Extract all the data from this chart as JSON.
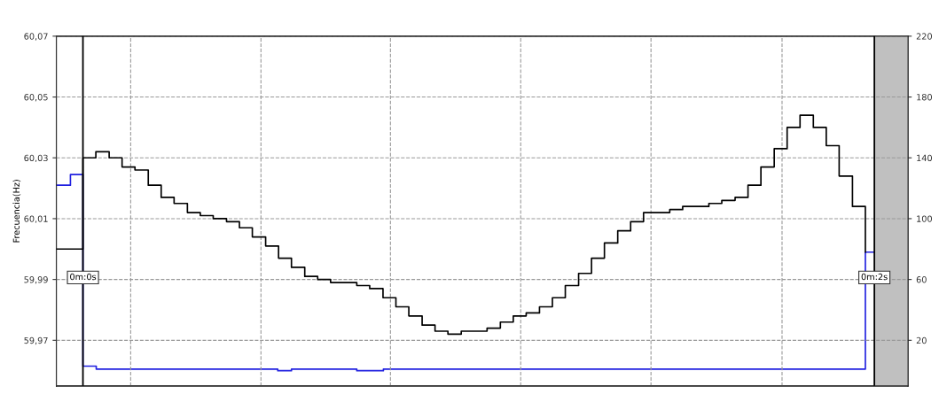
{
  "chart_data": {
    "type": "step",
    "ylabel": "Frecuencia(Hz)",
    "xlim": [
      -0.068,
      2.109
    ],
    "xticks": [
      {
        "value": 0.122,
        "label": null
      },
      {
        "value": 0.455,
        "label": null
      },
      {
        "value": 0.786,
        "label": null
      },
      {
        "value": 1.119,
        "label": null
      },
      {
        "value": 1.452,
        "label": null
      },
      {
        "value": 1.787,
        "label": null
      }
    ],
    "ylim": [
      59.955,
      60.07
    ],
    "yticks": [
      {
        "value": 59.97,
        "label": "59,97"
      },
      {
        "value": 59.99,
        "label": "59,99"
      },
      {
        "value": 60.01,
        "label": "60,01"
      },
      {
        "value": 60.03,
        "label": "60,03"
      },
      {
        "value": 60.05,
        "label": "60,05"
      },
      {
        "value": 60.07,
        "label": "60,07"
      }
    ],
    "y2lim": [
      -10,
      220
    ],
    "y2ticks": [
      20,
      60,
      100,
      140,
      180,
      220
    ],
    "grid": true,
    "tick_labels": "y",
    "series": [
      {
        "color": "#000000",
        "x": [
          -0.068,
          0,
          0.033,
          0.067,
          0.1,
          0.133,
          0.167,
          0.2,
          0.233,
          0.267,
          0.3,
          0.333,
          0.367,
          0.4,
          0.433,
          0.467,
          0.5,
          0.533,
          0.567,
          0.6,
          0.633,
          0.667,
          0.7,
          0.733,
          0.767,
          0.8,
          0.833,
          0.867,
          0.9,
          0.933,
          0.967,
          1.0,
          1.033,
          1.067,
          1.1,
          1.133,
          1.167,
          1.2,
          1.233,
          1.267,
          1.3,
          1.333,
          1.367,
          1.4,
          1.433,
          1.467,
          1.5,
          1.533,
          1.567,
          1.6,
          1.633,
          1.667,
          1.7,
          1.733,
          1.767,
          1.8,
          1.833,
          1.867,
          1.9,
          1.933,
          1.967,
          2.0
        ],
        "values": [
          60.0,
          60.03,
          60.032,
          60.03,
          60.027,
          60.026,
          60.021,
          60.017,
          60.015,
          60.012,
          60.011,
          60.01,
          60.009,
          60.007,
          60.004,
          60.001,
          59.997,
          59.994,
          59.991,
          59.99,
          59.989,
          59.989,
          59.988,
          59.987,
          59.984,
          59.981,
          59.978,
          59.975,
          59.973,
          59.972,
          59.973,
          59.973,
          59.974,
          59.976,
          59.978,
          59.979,
          59.981,
          59.984,
          59.988,
          59.992,
          59.997,
          60.002,
          60.006,
          60.009,
          60.012,
          60.012,
          60.013,
          60.014,
          60.014,
          60.015,
          60.016,
          60.017,
          60.021,
          60.027,
          60.033,
          60.04,
          60.044,
          60.04,
          60.034,
          60.024,
          60.014,
          59.999
        ]
      },
      {
        "color": "#2020e0",
        "axis": "y2",
        "x": [
          -0.068,
          -0.032,
          0,
          0.034,
          0.498,
          0.533,
          0.7,
          0.768,
          2.0,
          2.023
        ],
        "values": [
          122,
          129,
          3,
          1,
          0,
          1,
          0,
          1,
          78,
          78
        ]
      }
    ],
    "ref_lines": [
      {
        "axis": "x",
        "value": 0,
        "label": "0m:0s",
        "color": "#000000",
        "line_style": "solid"
      },
      {
        "axis": "x",
        "value": 2.023,
        "label": "0m:2s",
        "color": "#000000",
        "line_style": "solid"
      }
    ],
    "bands": [
      {
        "axis": "x",
        "from": 2.023,
        "to": 2.109,
        "color": "#c0c0c0"
      }
    ]
  }
}
